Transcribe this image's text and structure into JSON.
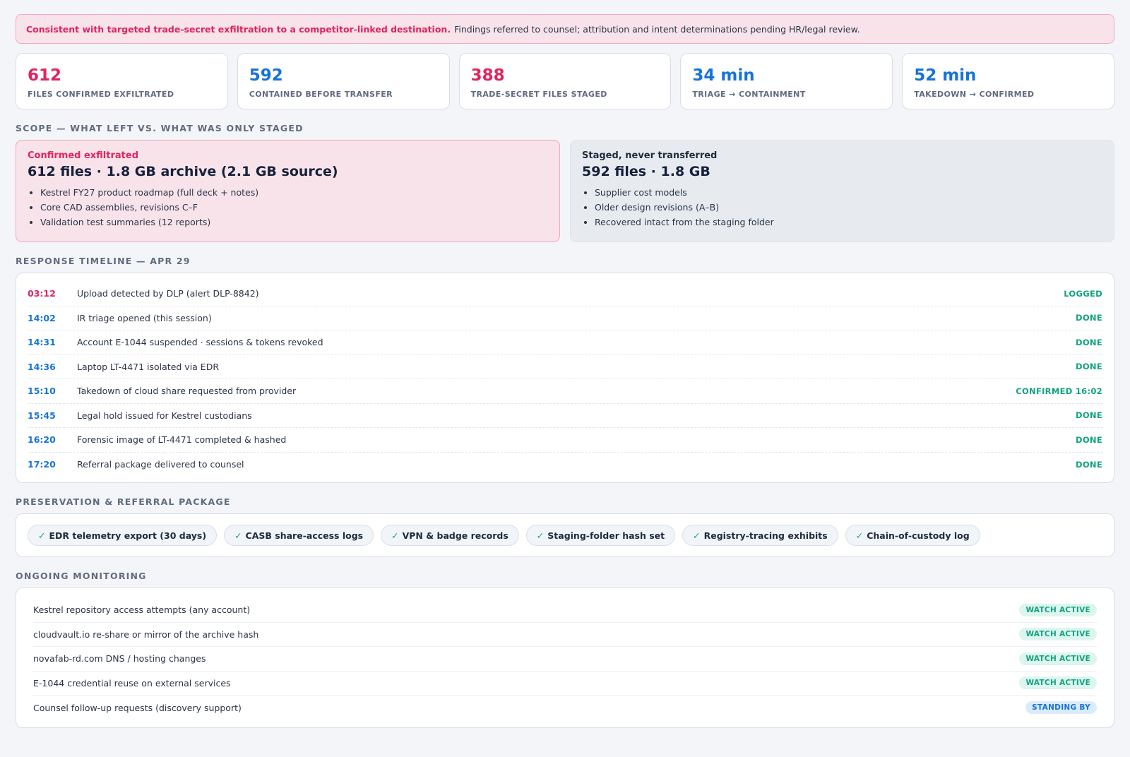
{
  "banner": {
    "highlight": "Consistent with targeted trade-secret exfiltration to a competitor-linked destination.",
    "text": "Findings referred to counsel; attribution and intent determinations pending HR/legal review."
  },
  "stats": [
    {
      "value": "612",
      "label": "FILES CONFIRMED EXFILTRATED",
      "color": "#e0245e"
    },
    {
      "value": "592",
      "label": "CONTAINED BEFORE TRANSFER",
      "color": "#1673d9"
    },
    {
      "value": "388",
      "label": "TRADE-SECRET FILES STAGED",
      "color": "#e0245e"
    },
    {
      "value": "34 min",
      "label": "TRIAGE → CONTAINMENT",
      "color": "#1673d9"
    },
    {
      "value": "52 min",
      "label": "TAKEDOWN → CONFIRMED",
      "color": "#1673d9"
    }
  ],
  "scope": {
    "title": "SCOPE — WHAT LEFT VS. WHAT WAS ONLY STAGED",
    "exfiltrated": {
      "kicker": "Confirmed exfiltrated",
      "headline": "612 files · 1.8 GB archive (2.1 GB source)",
      "items": [
        "Kestrel FY27 product roadmap (full deck + notes)",
        "Core CAD assemblies, revisions C–F",
        "Validation test summaries (12 reports)"
      ]
    },
    "staged": {
      "kicker": "Staged, never transferred",
      "headline": "592 files · 1.8 GB",
      "items": [
        "Supplier cost models",
        "Older design revisions (A–B)",
        "Recovered intact from the staging folder"
      ]
    }
  },
  "timeline": {
    "title": "RESPONSE TIMELINE — APR 29",
    "rows": [
      {
        "time": "03:12",
        "text": "Upload detected by DLP (alert DLP-8842)",
        "status": "LOGGED",
        "time_color": "#e0245e"
      },
      {
        "time": "14:02",
        "text": "IR triage opened (this session)",
        "status": "DONE",
        "time_color": "#1673d9"
      },
      {
        "time": "14:31",
        "text": "Account E-1044 suspended · sessions & tokens revoked",
        "status": "DONE",
        "time_color": "#1673d9"
      },
      {
        "time": "14:36",
        "text": "Laptop LT-4471 isolated via EDR",
        "status": "DONE",
        "time_color": "#1673d9"
      },
      {
        "time": "15:10",
        "text": "Takedown of cloud share requested from provider",
        "status": "CONFIRMED 16:02",
        "time_color": "#1673d9"
      },
      {
        "time": "15:45",
        "text": "Legal hold issued for Kestrel custodians",
        "status": "DONE",
        "time_color": "#1673d9"
      },
      {
        "time": "16:20",
        "text": "Forensic image of LT-4471 completed & hashed",
        "status": "DONE",
        "time_color": "#1673d9"
      },
      {
        "time": "17:20",
        "text": "Referral package delivered to counsel",
        "status": "DONE",
        "time_color": "#1673d9"
      }
    ]
  },
  "package": {
    "title": "PRESERVATION & REFERRAL PACKAGE",
    "check": "✓",
    "items": [
      "EDR telemetry export (30 days)",
      "CASB share-access logs",
      "VPN & badge records",
      "Staging-folder hash set",
      "Registry-tracing exhibits",
      "Chain-of-custody log"
    ]
  },
  "monitoring": {
    "title": "ONGOING MONITORING",
    "rows": [
      {
        "text": "Kestrel repository access attempts (any account)",
        "badge": "WATCH ACTIVE",
        "kind": "watch"
      },
      {
        "text": "cloudvault.io re-share or mirror of the archive hash",
        "badge": "WATCH ACTIVE",
        "kind": "watch"
      },
      {
        "text": "novafab-rd.com DNS / hosting changes",
        "badge": "WATCH ACTIVE",
        "kind": "watch"
      },
      {
        "text": "E-1044 credential reuse on external services",
        "badge": "WATCH ACTIVE",
        "kind": "watch"
      },
      {
        "text": "Counsel follow-up requests (discovery support)",
        "badge": "STANDING BY",
        "kind": "standby"
      }
    ]
  }
}
